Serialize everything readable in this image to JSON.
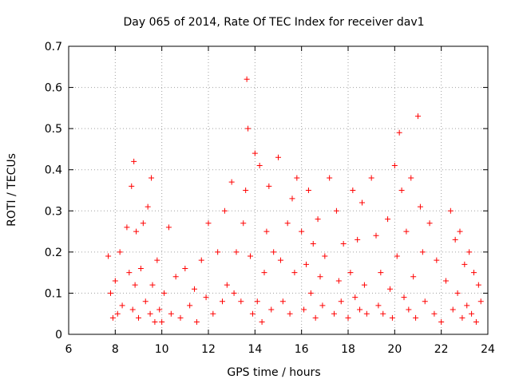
{
  "chart_data": {
    "type": "scatter",
    "title": "Day 065 of 2014, Rate Of TEC Index for receiver dav1",
    "xlabel": "GPS time / hours",
    "ylabel": "ROTI / TECUs",
    "xlim": [
      6,
      24
    ],
    "ylim": [
      0,
      0.7
    ],
    "xticks": [
      6,
      8,
      10,
      12,
      14,
      16,
      18,
      20,
      22,
      24
    ],
    "xtick_labels": [
      "6",
      "8",
      "10",
      "12",
      "14",
      "16",
      "18",
      "20",
      "22",
      "24"
    ],
    "yticks": [
      0,
      0.1,
      0.2,
      0.3,
      0.4,
      0.5,
      0.6,
      0.7
    ],
    "ytick_labels": [
      "0",
      "0.1",
      "0.2",
      "0.3",
      "0.4",
      "0.5",
      "0.6",
      "0.7"
    ],
    "grid": true,
    "marker": "plus",
    "series": [
      {
        "name": "dav1",
        "color": "#ff0000",
        "x": [
          7.7,
          7.8,
          7.9,
          8.0,
          8.1,
          8.2,
          8.3,
          8.5,
          8.6,
          8.7,
          8.75,
          8.8,
          8.85,
          8.9,
          9.0,
          9.1,
          9.2,
          9.3,
          9.4,
          9.5,
          9.55,
          9.6,
          9.7,
          9.8,
          9.9,
          10.0,
          10.1,
          10.3,
          10.4,
          10.6,
          10.8,
          11.0,
          11.2,
          11.4,
          11.5,
          11.7,
          11.9,
          12.0,
          12.2,
          12.4,
          12.6,
          12.7,
          12.8,
          13.0,
          13.1,
          13.2,
          13.4,
          13.5,
          13.6,
          13.65,
          13.7,
          13.8,
          13.9,
          14.0,
          14.1,
          14.2,
          14.3,
          14.4,
          14.5,
          14.6,
          14.7,
          14.8,
          15.0,
          15.1,
          15.2,
          15.4,
          15.5,
          15.6,
          15.7,
          15.8,
          16.0,
          16.1,
          16.2,
          16.3,
          16.4,
          16.5,
          16.6,
          16.7,
          16.8,
          16.9,
          17.0,
          17.2,
          17.4,
          17.5,
          17.6,
          17.7,
          17.8,
          18.0,
          18.1,
          18.2,
          18.3,
          18.4,
          18.5,
          18.6,
          18.7,
          18.8,
          19.0,
          19.2,
          19.3,
          19.4,
          19.5,
          19.7,
          19.8,
          19.9,
          20.0,
          20.1,
          20.2,
          20.3,
          20.4,
          20.5,
          20.6,
          20.7,
          20.8,
          20.9,
          21.0,
          21.1,
          21.2,
          21.3,
          21.5,
          21.7,
          21.8,
          22.0,
          22.2,
          22.4,
          22.5,
          22.6,
          22.7,
          22.8,
          22.9,
          23.0,
          23.1,
          23.2,
          23.3,
          23.4,
          23.5,
          23.6,
          23.7
        ],
        "y": [
          0.19,
          0.1,
          0.04,
          0.13,
          0.05,
          0.2,
          0.07,
          0.26,
          0.15,
          0.36,
          0.06,
          0.42,
          0.12,
          0.25,
          0.04,
          0.16,
          0.27,
          0.08,
          0.31,
          0.05,
          0.38,
          0.12,
          0.03,
          0.18,
          0.06,
          0.03,
          0.1,
          0.26,
          0.05,
          0.14,
          0.04,
          0.16,
          0.07,
          0.11,
          0.03,
          0.18,
          0.09,
          0.27,
          0.05,
          0.2,
          0.08,
          0.3,
          0.12,
          0.37,
          0.1,
          0.2,
          0.08,
          0.27,
          0.35,
          0.62,
          0.5,
          0.19,
          0.05,
          0.44,
          0.08,
          0.41,
          0.03,
          0.15,
          0.25,
          0.36,
          0.06,
          0.2,
          0.43,
          0.18,
          0.08,
          0.27,
          0.05,
          0.33,
          0.15,
          0.38,
          0.25,
          0.06,
          0.17,
          0.35,
          0.1,
          0.22,
          0.04,
          0.28,
          0.14,
          0.07,
          0.19,
          0.38,
          0.05,
          0.3,
          0.13,
          0.08,
          0.22,
          0.04,
          0.15,
          0.35,
          0.09,
          0.23,
          0.06,
          0.32,
          0.12,
          0.05,
          0.38,
          0.24,
          0.07,
          0.15,
          0.05,
          0.28,
          0.11,
          0.04,
          0.41,
          0.19,
          0.49,
          0.35,
          0.09,
          0.25,
          0.06,
          0.38,
          0.14,
          0.04,
          0.53,
          0.31,
          0.2,
          0.08,
          0.27,
          0.05,
          0.18,
          0.03,
          0.13,
          0.3,
          0.06,
          0.23,
          0.1,
          0.25,
          0.04,
          0.17,
          0.07,
          0.2,
          0.05,
          0.15,
          0.03,
          0.12,
          0.08
        ]
      }
    ]
  }
}
